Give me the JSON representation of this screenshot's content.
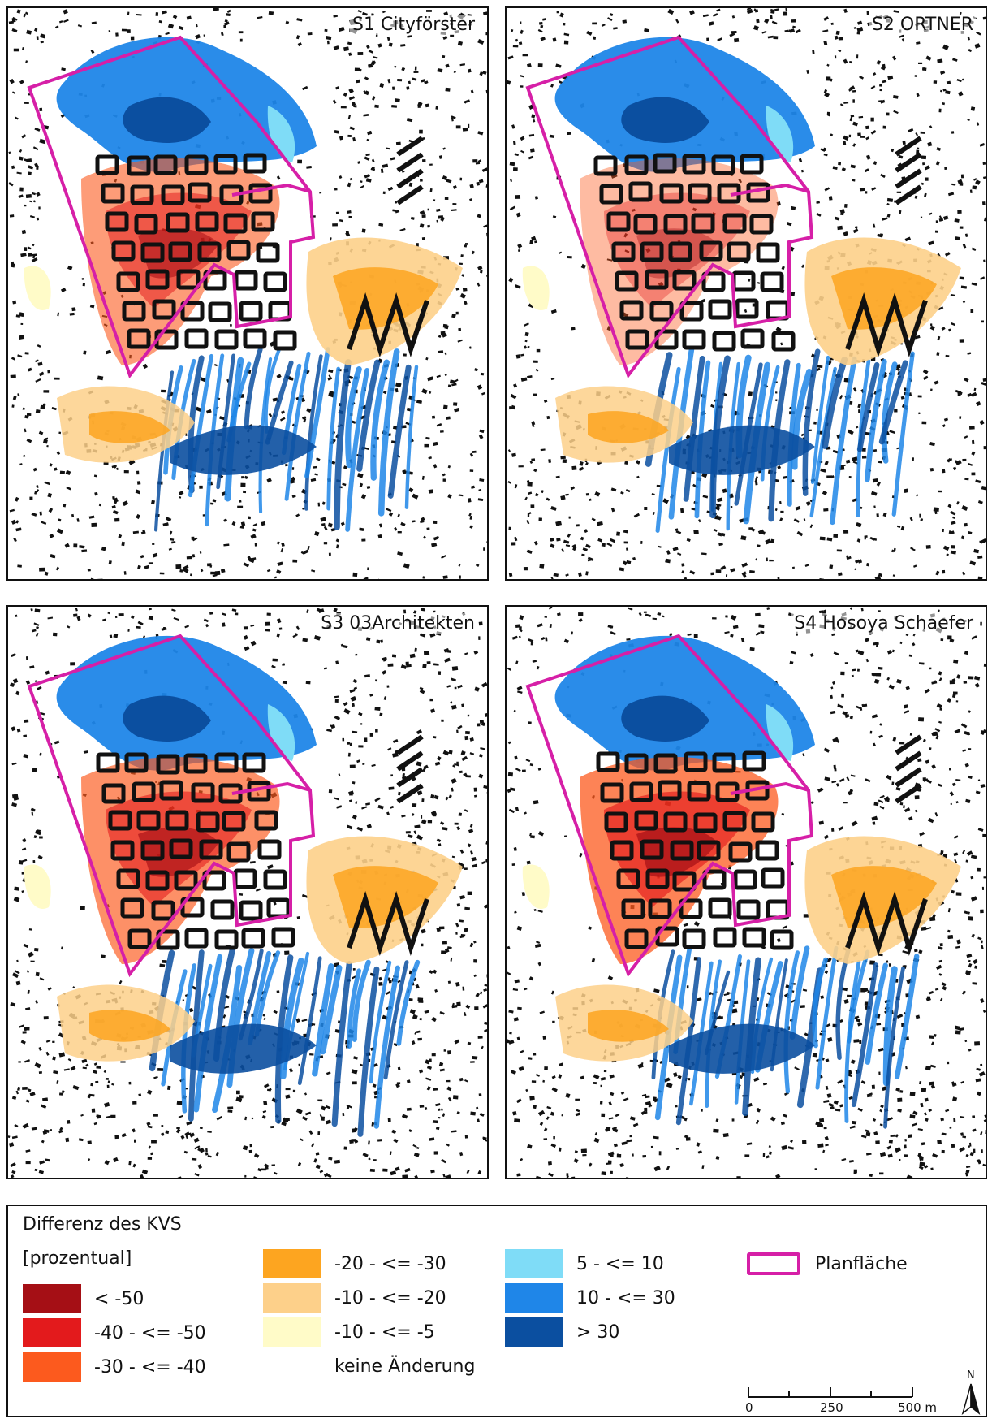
{
  "panels": [
    {
      "id": "S1",
      "title": "S1 Cityförster"
    },
    {
      "id": "S2",
      "title": "S2 ORTNER"
    },
    {
      "id": "S3",
      "title": "S3 03Architekten"
    },
    {
      "id": "S4",
      "title": "S4 Hosoya Schaefer"
    }
  ],
  "legend": {
    "title": "Differenz des KVS",
    "unit": "[prozentual]",
    "classes": [
      {
        "label": "< -50",
        "color": "#a50f15"
      },
      {
        "label": "-40 - <= -50",
        "color": "#e31a1c"
      },
      {
        "label": "-30 - <= -40",
        "color": "#fc5a1e"
      },
      {
        "label": "-20 - <= -30",
        "color": "#fda520"
      },
      {
        "label": "-10 - <= -20",
        "color": "#fdd08a"
      },
      {
        "label": "-10 - <= -5",
        "color": "#fffbc8"
      },
      {
        "label": "keine Änderung",
        "color": "#ffffff"
      },
      {
        "label": "5 - <= 10",
        "color": "#7fdcf7"
      },
      {
        "label": "10 - <= 30",
        "color": "#1f86e8"
      },
      {
        "label": "> 30",
        "color": "#0b4fa0"
      }
    ],
    "planflaeche": {
      "label": "Planfläche",
      "color": "#d61fa7"
    }
  },
  "scale": {
    "labels": [
      "0",
      "250",
      "500 m"
    ]
  },
  "north": {
    "label": "N"
  }
}
